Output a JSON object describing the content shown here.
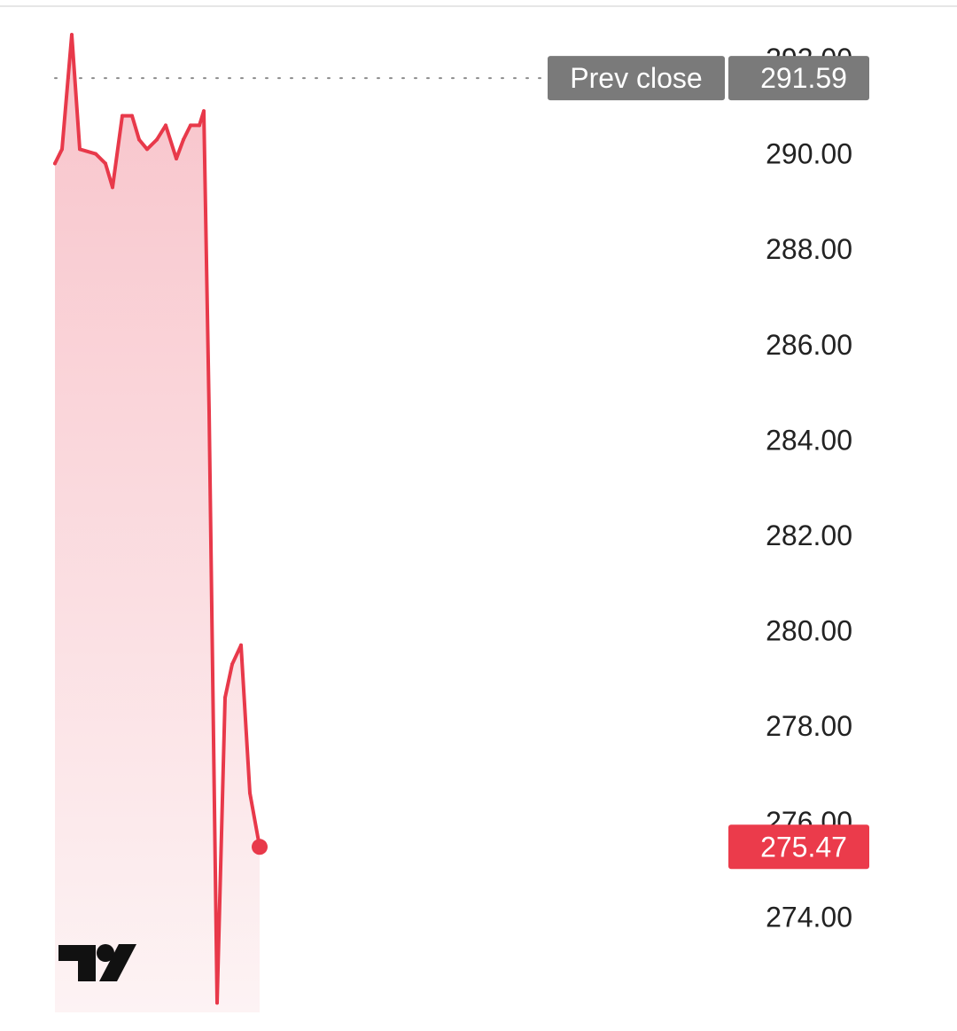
{
  "chart_data": {
    "type": "area",
    "ylim": [
      272.0,
      292.8
    ],
    "y_ticks": [
      "292.00",
      "290.00",
      "288.00",
      "286.00",
      "284.00",
      "282.00",
      "280.00",
      "278.00",
      "276.00",
      "274.00"
    ],
    "y_tick_values": [
      292,
      290,
      288,
      286,
      284,
      282,
      280,
      278,
      276,
      274
    ],
    "reference_line": {
      "label": "Prev close",
      "value_text": "291.59",
      "value": 291.59
    },
    "last_price": {
      "value_text": "275.47",
      "value": 275.47
    },
    "series": [
      {
        "values": [
          289.8,
          290.1,
          292.5,
          290.1,
          290.0,
          289.8,
          289.3,
          290.8,
          290.8,
          290.3,
          290.1,
          290.3,
          290.6,
          289.9,
          290.3,
          290.6,
          290.6,
          290.9,
          284.6,
          272.2,
          278.6,
          279.3,
          279.7,
          276.6,
          275.47
        ]
      }
    ]
  },
  "colors": {
    "line": "#e8394a",
    "fill_top": "#f8c3ca",
    "fill_bottom": "#fdf3f4",
    "badge_gray": "#7a7a7a",
    "badge_red": "#eb3b4b",
    "dotted_line": "#8c8c8c"
  },
  "logo": {
    "icon": "tradingview-logo-icon"
  }
}
